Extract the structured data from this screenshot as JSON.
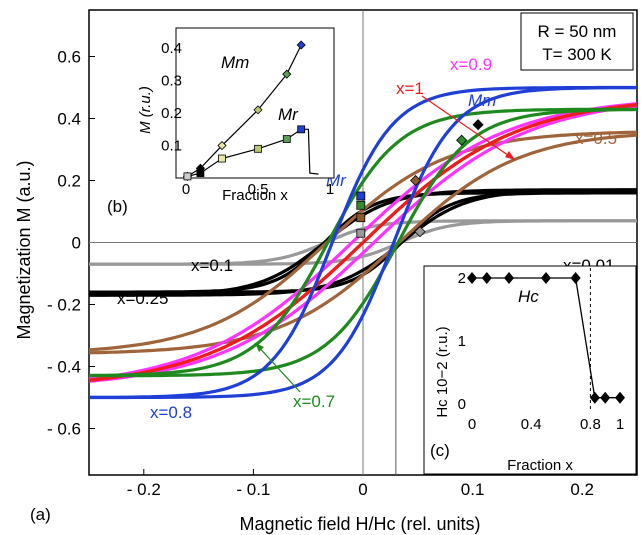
{
  "chart_data": [
    {
      "panel": "(a)",
      "type": "line",
      "xlabel": "Magnetic field H/Hc (rel. units)",
      "ylabel": "Magnetization  M (a.u.)",
      "xlim": [
        -0.25,
        0.25
      ],
      "ylim": [
        -0.75,
        0.75
      ],
      "xticks": [
        -0.2,
        -0.1,
        0,
        0.1,
        0.2
      ],
      "xtick_labels": [
        "- 0.2",
        "- 0.1",
        "0",
        "0.1",
        "0.2"
      ],
      "yticks": [
        0.6,
        0.4,
        0.2,
        0,
        -0.2,
        -0.4,
        -0.6
      ],
      "ytick_labels": [
        "0.6",
        "0.4",
        "0.2",
        "0",
        "- 0.2",
        "- 0.4",
        "- 0.6"
      ],
      "params_box": {
        "line1": "R = 50 nm",
        "line2": "T= 300 K"
      },
      "annotations": {
        "Mm": "Mm",
        "Mr": "Mr"
      },
      "colors": {
        "0.01": "#999999",
        "0.1": "#000000",
        "0.25": "#000000",
        "0.5": "#a0643a",
        "0.7": "#1e8a1e",
        "0.8": "#1f3fd6",
        "0.9": "#ff33ff",
        "1": "#ee1c1c"
      },
      "series": [
        {
          "x_fraction": 0.01,
          "label": "x=0.01",
          "Ms": 0.07,
          "Hc": 0.034,
          "width": 0.045
        },
        {
          "x_fraction": 0.1,
          "label": "x=0.1",
          "Ms": 0.16,
          "Hc": 0.035,
          "width": 0.045
        },
        {
          "x_fraction": 0.25,
          "label": "x=0.25",
          "Ms": 0.17,
          "Hc": 0.035,
          "width": 0.06
        },
        {
          "x_fraction": 0.5,
          "label": "x=0.5",
          "Ms": 0.36,
          "Hc": 0.033,
          "width": 0.11
        },
        {
          "x_fraction": 0.7,
          "label": "x=0.7",
          "Ms": 0.43,
          "Hc": 0.032,
          "width": 0.065
        },
        {
          "x_fraction": 0.8,
          "label": "x=0.8",
          "Ms": 0.5,
          "Hc": 0.028,
          "width": 0.055
        },
        {
          "x_fraction": 0.9,
          "label": "x=0.9",
          "Ms": 0.47,
          "Hc": 0.01,
          "width": 0.14
        },
        {
          "x_fraction": 1,
          "label": "x=1",
          "Ms": 0.47,
          "Hc": 0.0,
          "width": 0.14
        }
      ],
      "markers": {
        "Mm": [
          {
            "x": 0.105,
            "y": 0.38,
            "color": "#000000"
          },
          {
            "x": 0.09,
            "y": 0.33,
            "color": "#2e8b2e"
          },
          {
            "x": 0.048,
            "y": 0.2,
            "color": "#8b5a2b"
          },
          {
            "x": 0.052,
            "y": 0.035,
            "color": "#999999"
          }
        ],
        "Mr": [
          {
            "x": -0.002,
            "y": 0.15,
            "color": "#1f3fd6"
          },
          {
            "x": -0.002,
            "y": 0.12,
            "color": "#2e8b2e"
          },
          {
            "x": -0.002,
            "y": 0.08,
            "color": "#8b5a2b"
          },
          {
            "x": -0.002,
            "y": 0.03,
            "color": "#999999"
          }
        ]
      }
    },
    {
      "panel": "(b)",
      "type": "scatter",
      "xlabel": "Fraction x",
      "ylabel": "M  (r.u.)",
      "xlim": [
        0,
        1
      ],
      "ylim": [
        0,
        0.45
      ],
      "xticks": [
        0,
        0.5,
        1
      ],
      "yticks": [
        0.1,
        0.2,
        0.3,
        0.4
      ],
      "series": [
        {
          "name": "Mm",
          "x": [
            0.01,
            0.1,
            0.25,
            0.5,
            0.7,
            0.8
          ],
          "y": [
            0.005,
            0.03,
            0.1,
            0.21,
            0.32,
            0.41
          ]
        },
        {
          "name": "Mr",
          "x": [
            0.01,
            0.1,
            0.25,
            0.5,
            0.7,
            0.8
          ],
          "y": [
            0.005,
            0.015,
            0.06,
            0.09,
            0.12,
            0.15
          ]
        }
      ]
    },
    {
      "panel": "(c)",
      "type": "line",
      "title": "Hc",
      "xlabel": "Fraction x",
      "ylabel": "Hc 10−2 (r.u.)",
      "xlim": [
        0,
        1
      ],
      "ylim": [
        0,
        2
      ],
      "xticks": [
        0,
        0.4,
        0.8,
        1
      ],
      "yticks": [
        0,
        1,
        2
      ],
      "x": [
        0,
        0.1,
        0.25,
        0.5,
        0.7,
        0.8,
        0.9,
        1
      ],
      "y": [
        2,
        2,
        2,
        2,
        2,
        0.1,
        0.1,
        0.1
      ]
    }
  ]
}
